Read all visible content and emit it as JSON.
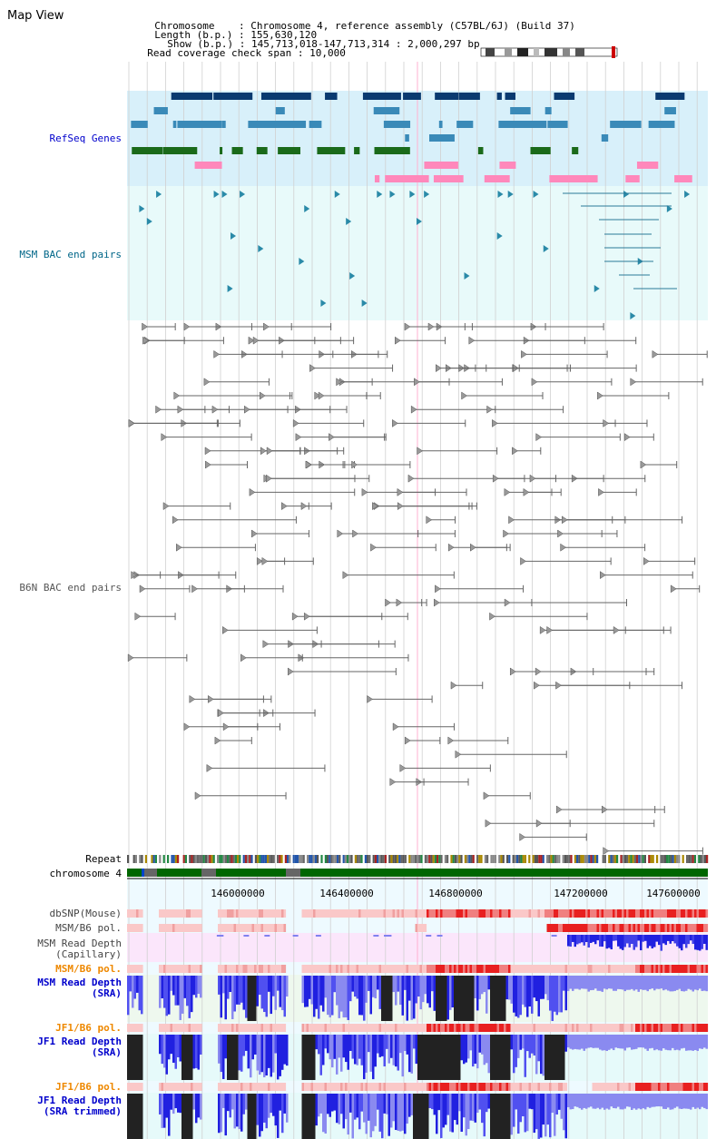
{
  "title": "Map View",
  "header": {
    "chromosome_key": "Chromosome",
    "chromosome_val": "Chromosome 4, reference assembly (C57BL/6J) (Build 37)",
    "length_key": "Length (b.p.)",
    "length_val": "155,630,120",
    "show_key": "Show (b.p.)",
    "show_val": "145,713,018-147,713,314 : 2,000,297 bp",
    "coverage_key": "Read coverage check span",
    "coverage_val": "10,000"
  },
  "tracks": {
    "refseq": "RefSeq Genes",
    "msm_bac": "MSM BAC end pairs",
    "b6n_bac": "B6N BAC end pairs",
    "repeat": "Repeat",
    "chromosome": "chromosome 4",
    "dbsnp": "dbSNP(Mouse)",
    "msm_b6_pol_cap": "MSM/B6 pol.",
    "msm_depth_cap_1": "MSM Read Depth",
    "msm_depth_cap_2": "(Capillary)",
    "msm_b6_pol_sra": "MSM/B6 pol.",
    "msm_depth_sra_1": "MSM Read Depth",
    "msm_depth_sra_2": "(SRA)",
    "jf1_b6_pol": "JF1/B6 pol.",
    "jf1_depth_sra_1": "JF1 Read Depth",
    "jf1_depth_sra_2": "(SRA)",
    "jf1_b6_pol_2": "JF1/B6 pol.",
    "jf1_depth_trim_1": "JF1 Read Depth",
    "jf1_depth_trim_2": "(SRA trimmed)"
  },
  "axis": {
    "ticks": [
      "146000000",
      "146400000",
      "146800000",
      "147200000",
      "147600000"
    ]
  },
  "colors": {
    "label_blue": "#0000cc",
    "label_teal": "#006688",
    "label_grey": "#555555",
    "label_orange": "#ee8800",
    "refseq_bg": "#d8f0fa",
    "msm_bg": "#e8fafa",
    "gene_navy": "#0a3a70",
    "gene_light": "#3a8ab8",
    "gene_green": "#1a6a1a",
    "gene_pink": "#ff88bb",
    "chrom_green": "#006600"
  }
}
